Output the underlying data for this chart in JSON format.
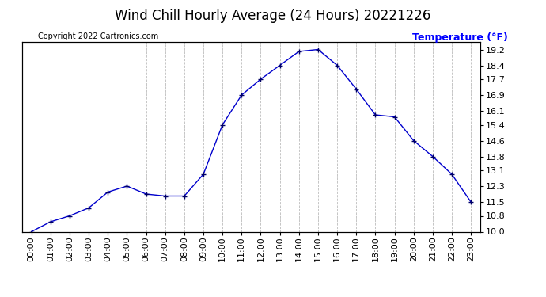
{
  "title": "Wind Chill Hourly Average (24 Hours) 20221226",
  "copyright_text": "Copyright 2022 Cartronics.com",
  "ylabel": "Temperature (°F)",
  "hours": [
    "00:00",
    "01:00",
    "02:00",
    "03:00",
    "04:00",
    "05:00",
    "06:00",
    "07:00",
    "08:00",
    "09:00",
    "10:00",
    "11:00",
    "12:00",
    "13:00",
    "14:00",
    "15:00",
    "16:00",
    "17:00",
    "18:00",
    "19:00",
    "20:00",
    "21:00",
    "22:00",
    "23:00"
  ],
  "values": [
    10.0,
    10.5,
    10.8,
    11.2,
    12.0,
    12.3,
    11.9,
    11.8,
    11.8,
    12.9,
    15.4,
    16.9,
    17.7,
    18.4,
    19.1,
    19.2,
    18.4,
    17.2,
    15.9,
    15.8,
    14.6,
    13.8,
    12.9,
    11.5
  ],
  "line_color": "#0000cc",
  "marker_color": "#000066",
  "grid_color": "#aaaaaa",
  "background_color": "#ffffff",
  "title_color": "#000000",
  "ylabel_color": "#0000ff",
  "copyright_color": "#000000",
  "ylim_min": 10.0,
  "ylim_max": 19.6,
  "yticks": [
    10.0,
    10.8,
    11.5,
    12.3,
    13.1,
    13.8,
    14.6,
    15.4,
    16.1,
    16.9,
    17.7,
    18.4,
    19.2
  ],
  "title_fontsize": 12,
  "copyright_fontsize": 7,
  "ylabel_fontsize": 9,
  "tick_fontsize": 8
}
